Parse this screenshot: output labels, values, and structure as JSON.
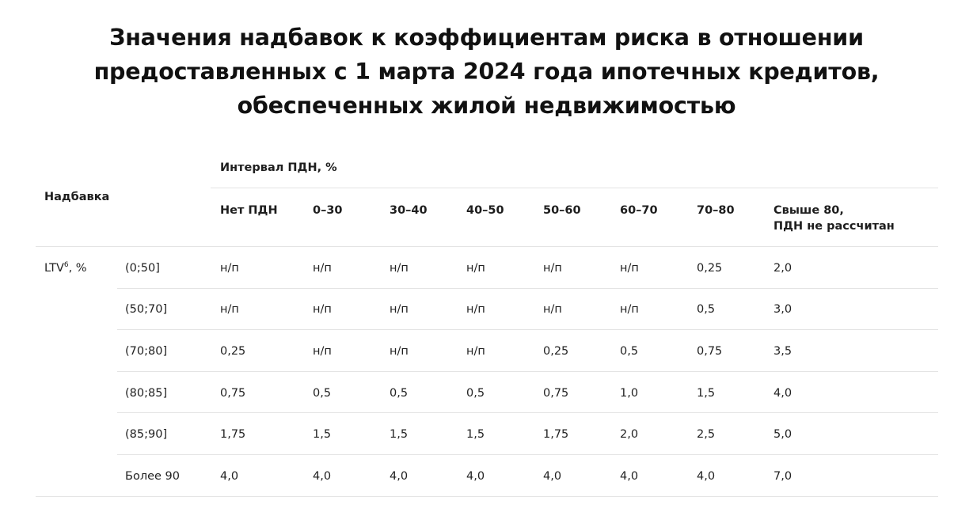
{
  "title_lines": [
    "Значения надбавок к коэффициентам риска в отношении",
    "предоставленных с 1 марта 2024 года ипотечных кредитов,",
    "обеспеченных жилой недвижимостью"
  ],
  "table": {
    "corner_header": "Надбавка",
    "group_header": "Интервал ПДН, %",
    "columns": [
      "Нет ПДН",
      "0–30",
      "30–40",
      "40–50",
      "50–60",
      "60–70",
      "70–80",
      "Свыше 80,"
    ],
    "last_column_line2": "ПДН не рассчитан",
    "row_group_label": "LTV",
    "row_group_sup": "6",
    "row_group_suffix": ", %",
    "rows": [
      {
        "label": "(0;50]",
        "values": [
          "н/п",
          "н/п",
          "н/п",
          "н/п",
          "н/п",
          "н/п",
          "0,25",
          "2,0"
        ]
      },
      {
        "label": "(50;70]",
        "values": [
          "н/п",
          "н/п",
          "н/п",
          "н/п",
          "н/п",
          "н/п",
          "0,5",
          "3,0"
        ]
      },
      {
        "label": "(70;80]",
        "values": [
          "0,25",
          "н/п",
          "н/п",
          "н/п",
          "0,25",
          "0,5",
          "0,75",
          "3,5"
        ]
      },
      {
        "label": "(80;85]",
        "values": [
          "0,75",
          "0,5",
          "0,5",
          "0,5",
          "0,75",
          "1,0",
          "1,5",
          "4,0"
        ]
      },
      {
        "label": "(85;90]",
        "values": [
          "1,75",
          "1,5",
          "1,5",
          "1,5",
          "1,75",
          "2,0",
          "2,5",
          "5,0"
        ]
      },
      {
        "label": "Более 90",
        "values": [
          "4,0",
          "4,0",
          "4,0",
          "4,0",
          "4,0",
          "4,0",
          "4,0",
          "7,0"
        ]
      }
    ]
  }
}
